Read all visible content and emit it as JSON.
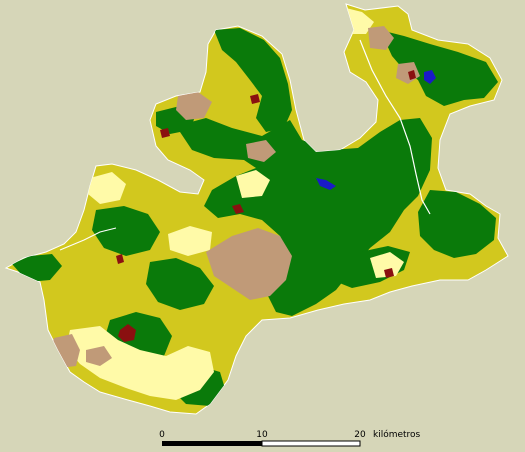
{
  "map": {
    "background": "#d6d6b8",
    "legend_colors": {
      "forest": "#0a7a0a",
      "scrub": "#d2c81e",
      "cropland": "#fffaa8",
      "bare_soil": "#c09a78",
      "urban": "#8a1010",
      "water": "#1a1ac8",
      "outline": "#ffffff"
    }
  },
  "scale_bar": {
    "tick_0": "0",
    "tick_10": "10",
    "tick_20": "20",
    "unit": "kilómetros"
  }
}
